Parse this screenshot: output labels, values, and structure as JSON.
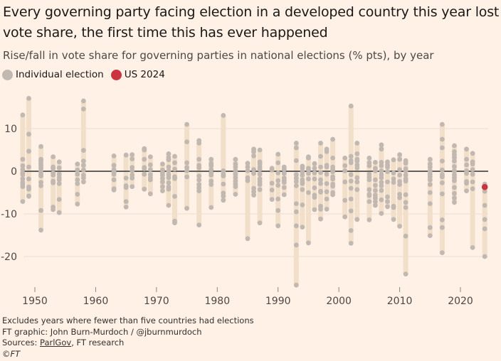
{
  "header": {
    "title": "Every governing party facing election in a developed country this year lost vote share, the first time this has ever happened",
    "subtitle": "Rise/fall in vote share for governing parties in national elections (% pts), by year"
  },
  "legend": {
    "items": [
      {
        "label": "Individual election",
        "color": "#c1b8b2"
      },
      {
        "label": "US 2024",
        "color": "#cc3340"
      }
    ]
  },
  "footer": {
    "note": "Excludes years where fewer than five countries had elections",
    "credit": "FT graphic: John Burn-Murdoch / @jburnmurdoch",
    "sources_prefix": "Sources: ",
    "sources_link": "ParlGov",
    "sources_suffix": ", FT research",
    "copyright": "©FT"
  },
  "colors": {
    "background": "#fff1e5",
    "range_bar": "#f2dfc9",
    "dot": "#c1b8b2",
    "highlight": "#cc3340",
    "zero_line": "#66605c",
    "grid": "#e9ddd2"
  },
  "chart_data": {
    "type": "scatter",
    "title": "Every governing party facing election in a developed country this year lost vote share, the first time this has ever happened",
    "ylabel": "",
    "xlabel": "",
    "xlim": [
      1947,
      2025
    ],
    "ylim": [
      -27,
      17
    ],
    "x_ticks": [
      1950,
      1960,
      1970,
      1980,
      1990,
      2000,
      2010,
      2020
    ],
    "y_ticks": [
      10,
      0,
      -10,
      -20
    ],
    "grid": true,
    "legend_position": "top-left",
    "highlight": {
      "name": "US 2024",
      "year": 2024,
      "value": -3.7
    },
    "series": [
      {
        "name": "Individual election",
        "points": [
          {
            "year": 1948,
            "values": [
              13.2,
              2.8,
              1.3,
              0.4,
              -0.4,
              -0.8,
              -1.8,
              -2.6,
              -3,
              -3.6,
              -7.1
            ]
          },
          {
            "year": 1949,
            "values": [
              17.1,
              8.7,
              4.7,
              1,
              -1.8,
              -3.7,
              -4.2,
              -5.8,
              -5.9
            ]
          },
          {
            "year": 1951,
            "values": [
              5.8,
              2.8,
              2.4,
              1.8,
              1.3,
              0.7,
              -0.1,
              -0.7,
              -1.1,
              -2.6,
              -3.4,
              -9.2,
              -13.8
            ]
          },
          {
            "year": 1953,
            "values": [
              3.4,
              1,
              0.7,
              -0.4,
              -0.9,
              -2.3,
              -2.7,
              -8.4,
              -9
            ]
          },
          {
            "year": 1954,
            "values": [
              2.2,
              0.8,
              -0.7,
              -1.5,
              -2,
              -2.9,
              -6.6,
              -9.7
            ]
          },
          {
            "year": 1957,
            "values": [
              1.7,
              0.3,
              -0.7,
              -2,
              -2.9,
              -5.4,
              -7.7
            ]
          },
          {
            "year": 1958,
            "values": [
              16.5,
              14.6,
              4.9,
              2.4,
              1.4,
              0.3,
              -0.9,
              -1.5,
              -2.5
            ]
          },
          {
            "year": 1963,
            "values": [
              3.6,
              1.4,
              0.4,
              -0.1,
              -0.7,
              -2,
              -4.1,
              -4.4
            ]
          },
          {
            "year": 1965,
            "values": [
              3.8,
              -1.6,
              -3.4,
              -3.8,
              -7.1,
              -8.4
            ]
          },
          {
            "year": 1966,
            "values": [
              3.9,
              2.9,
              0.9,
              0.1,
              -0.9,
              -1.6,
              -3.6
            ]
          },
          {
            "year": 1968,
            "values": [
              5.3,
              5,
              2.8,
              0.9,
              0.6,
              -0.7,
              -4.2
            ]
          },
          {
            "year": 1969,
            "values": [
              3.4,
              1.5,
              0.4,
              -0.8,
              -1.5,
              -2,
              -5.3
            ]
          },
          {
            "year": 1971,
            "values": [
              1.7,
              0.3,
              -0.3,
              -0.9,
              -1.7,
              -2.5,
              -3.6,
              -4.6
            ]
          },
          {
            "year": 1972,
            "values": [
              4.1,
              3.2,
              2.7,
              1,
              0.1,
              -0.8,
              -1.5,
              -2.7,
              -3.7,
              -4.2,
              -8
            ]
          },
          {
            "year": 1973,
            "values": [
              3.5,
              2,
              0.5,
              -1.3,
              -1.7,
              -5.9,
              -11.7,
              -12.1
            ]
          },
          {
            "year": 1975,
            "values": [
              11,
              6.9,
              2,
              0.9,
              0.1,
              -1.3,
              -8.7
            ]
          },
          {
            "year": 1977,
            "values": [
              7.2,
              6.6,
              2.8,
              1.4,
              0.8,
              -1.1,
              -2,
              -3.1,
              -3.9,
              -4.6,
              -12.6
            ]
          },
          {
            "year": 1979,
            "values": [
              2.8,
              1.8,
              1.3,
              0.4,
              -0.4,
              -0.9,
              -2.3,
              -3.1,
              -8.5
            ]
          },
          {
            "year": 1981,
            "values": [
              13.1,
              0.1,
              -0.7,
              -1.1,
              -3,
              -5.1,
              -5.8,
              -6.8
            ]
          },
          {
            "year": 1983,
            "values": [
              2.8,
              1.7,
              1,
              0.1,
              -0.7,
              -1.5,
              -2.3,
              -3,
              -3.6,
              -5.4
            ]
          },
          {
            "year": 1985,
            "values": [
              1.9,
              1,
              0.1,
              -1.5,
              -2.2,
              -15.8
            ]
          },
          {
            "year": 1986,
            "values": [
              5.2,
              4.6,
              3.6,
              0.4,
              -0.5,
              -4,
              -4.8,
              -5.6
            ]
          },
          {
            "year": 1987,
            "values": [
              5,
              2.2,
              1.7,
              1,
              0.4,
              -0.7,
              -1.8,
              -2.5,
              -3.1,
              -4.3,
              -12.1
            ]
          },
          {
            "year": 1989,
            "values": [
              0.7,
              0.3,
              -2.8,
              -4.4,
              -6.6
            ]
          },
          {
            "year": 1990,
            "values": [
              4,
              2,
              -0.4,
              -2.2,
              -3.3,
              -6.5,
              -9.2,
              -12.8
            ]
          },
          {
            "year": 1991,
            "values": [
              1,
              0.4,
              -0.5,
              -1.6,
              -2.2,
              -2.6,
              -3.8,
              -5.5
            ]
          },
          {
            "year": 1993,
            "values": [
              6.6,
              5.5,
              2.5,
              -0.8,
              -1.6,
              -2.4,
              -3.4,
              -7.6,
              -9.5,
              -12.8,
              -17.3,
              -26.7
            ]
          },
          {
            "year": 1994,
            "values": [
              1.2,
              0.7,
              -0.2,
              -0.9,
              -2,
              -2.6,
              -2.9,
              -4.3,
              -7.9,
              -13.1
            ]
          },
          {
            "year": 1995,
            "values": [
              3.4,
              3.1,
              0.7,
              0.3,
              -0.5,
              -1.8,
              -5,
              -16.8
            ]
          },
          {
            "year": 1996,
            "values": [
              1.8,
              0.7,
              -0.4,
              -1.8,
              -3.9,
              -5.6,
              -6.1,
              -9
            ]
          },
          {
            "year": 1997,
            "values": [
              6.6,
              3.5,
              1,
              -0.3,
              -2,
              -2.9,
              -4.7,
              -4.9,
              -8.2,
              -8.9,
              -11.2
            ]
          },
          {
            "year": 1998,
            "values": [
              5.2,
              4.6,
              1.4,
              1,
              -0.7,
              -2.9,
              -4.8,
              -6.5,
              -8.9
            ]
          },
          {
            "year": 1999,
            "values": [
              7.5,
              3.1,
              1,
              0.4,
              -0.1,
              -1.3,
              -1.8,
              -3,
              -3.5,
              -5,
              -5.5
            ]
          },
          {
            "year": 2001,
            "values": [
              3.1,
              1.3,
              0.1,
              -2.5,
              -6.8,
              -10.7
            ]
          },
          {
            "year": 2002,
            "values": [
              15.3,
              3.5,
              2.5,
              2,
              -0.8,
              -2.3,
              -4,
              -6.5,
              -9.3,
              -13.9,
              -16.9
            ]
          },
          {
            "year": 2003,
            "values": [
              6.6,
              4.1,
              2.8,
              2.4,
              1.5,
              0.8,
              -1.5,
              -2.5,
              -4.3,
              -11.3
            ]
          },
          {
            "year": 2005,
            "values": [
              3.1,
              2,
              1.3,
              -0.7,
              -1.4,
              -2,
              -4.3,
              -5.4,
              -5.7,
              -7.1,
              -11.4
            ]
          },
          {
            "year": 2006,
            "values": [
              2.1,
              0.7,
              0.1,
              -2,
              -3.3,
              -4.5,
              -5.6,
              -6.3,
              -7.1,
              -8
            ]
          },
          {
            "year": 2007,
            "values": [
              6.2,
              5.2,
              2.1,
              1.3,
              0.1,
              -0.8,
              -1.5,
              -2.6,
              -3.4,
              -4.5,
              -6.7,
              -9.9
            ]
          },
          {
            "year": 2008,
            "values": [
              2.2,
              1.5,
              1,
              -0.1,
              -2.5,
              -6,
              -7.1,
              -8.3
            ]
          },
          {
            "year": 2009,
            "values": [
              2.7,
              -0.4,
              -1.8,
              -2.6,
              -8.2,
              -8.5,
              -11.3
            ]
          },
          {
            "year": 2010,
            "values": [
              3.9,
              2.8,
              0.4,
              -0.9,
              -2.4,
              -3.1,
              -5.4,
              -6.2,
              -12.9
            ]
          },
          {
            "year": 2011,
            "values": [
              2.5,
              1.9,
              0.6,
              0.1,
              -0.9,
              -1.8,
              -2.3,
              -5.5,
              -7.3,
              -8.5,
              -15.2,
              -24.1
            ]
          },
          {
            "year": 2015,
            "values": [
              2.8,
              1.7,
              1,
              0.1,
              -0.7,
              -1.3,
              -2,
              -3.1,
              -5,
              -7.6,
              -13.2,
              -15.1
            ]
          },
          {
            "year": 2017,
            "values": [
              11,
              7.5,
              5.5,
              2.4,
              0.3,
              -0.8,
              -1.3,
              -2.7,
              -5.3,
              -11.4,
              -13.2,
              -19.1
            ]
          },
          {
            "year": 2019,
            "values": [
              6,
              4.6,
              3.9,
              3.2,
              2.4,
              1.1,
              0.1,
              -0.8,
              -1.5,
              -2.2,
              -3.8,
              -5.2,
              -6.3,
              -7.3
            ]
          },
          {
            "year": 2021,
            "values": [
              5.2,
              2.8,
              1.5,
              0.1,
              -0.5,
              -2.4,
              -2.8,
              -4.6
            ]
          },
          {
            "year": 2022,
            "values": [
              4.2,
              2.2,
              1.7,
              0.4,
              -0.7,
              -2.5,
              -4.1,
              -17.9
            ]
          },
          {
            "year": 2024,
            "values": [
              -3,
              -4.7,
              -8,
              -11.3,
              -13.5,
              -20
            ]
          }
        ]
      }
    ]
  }
}
